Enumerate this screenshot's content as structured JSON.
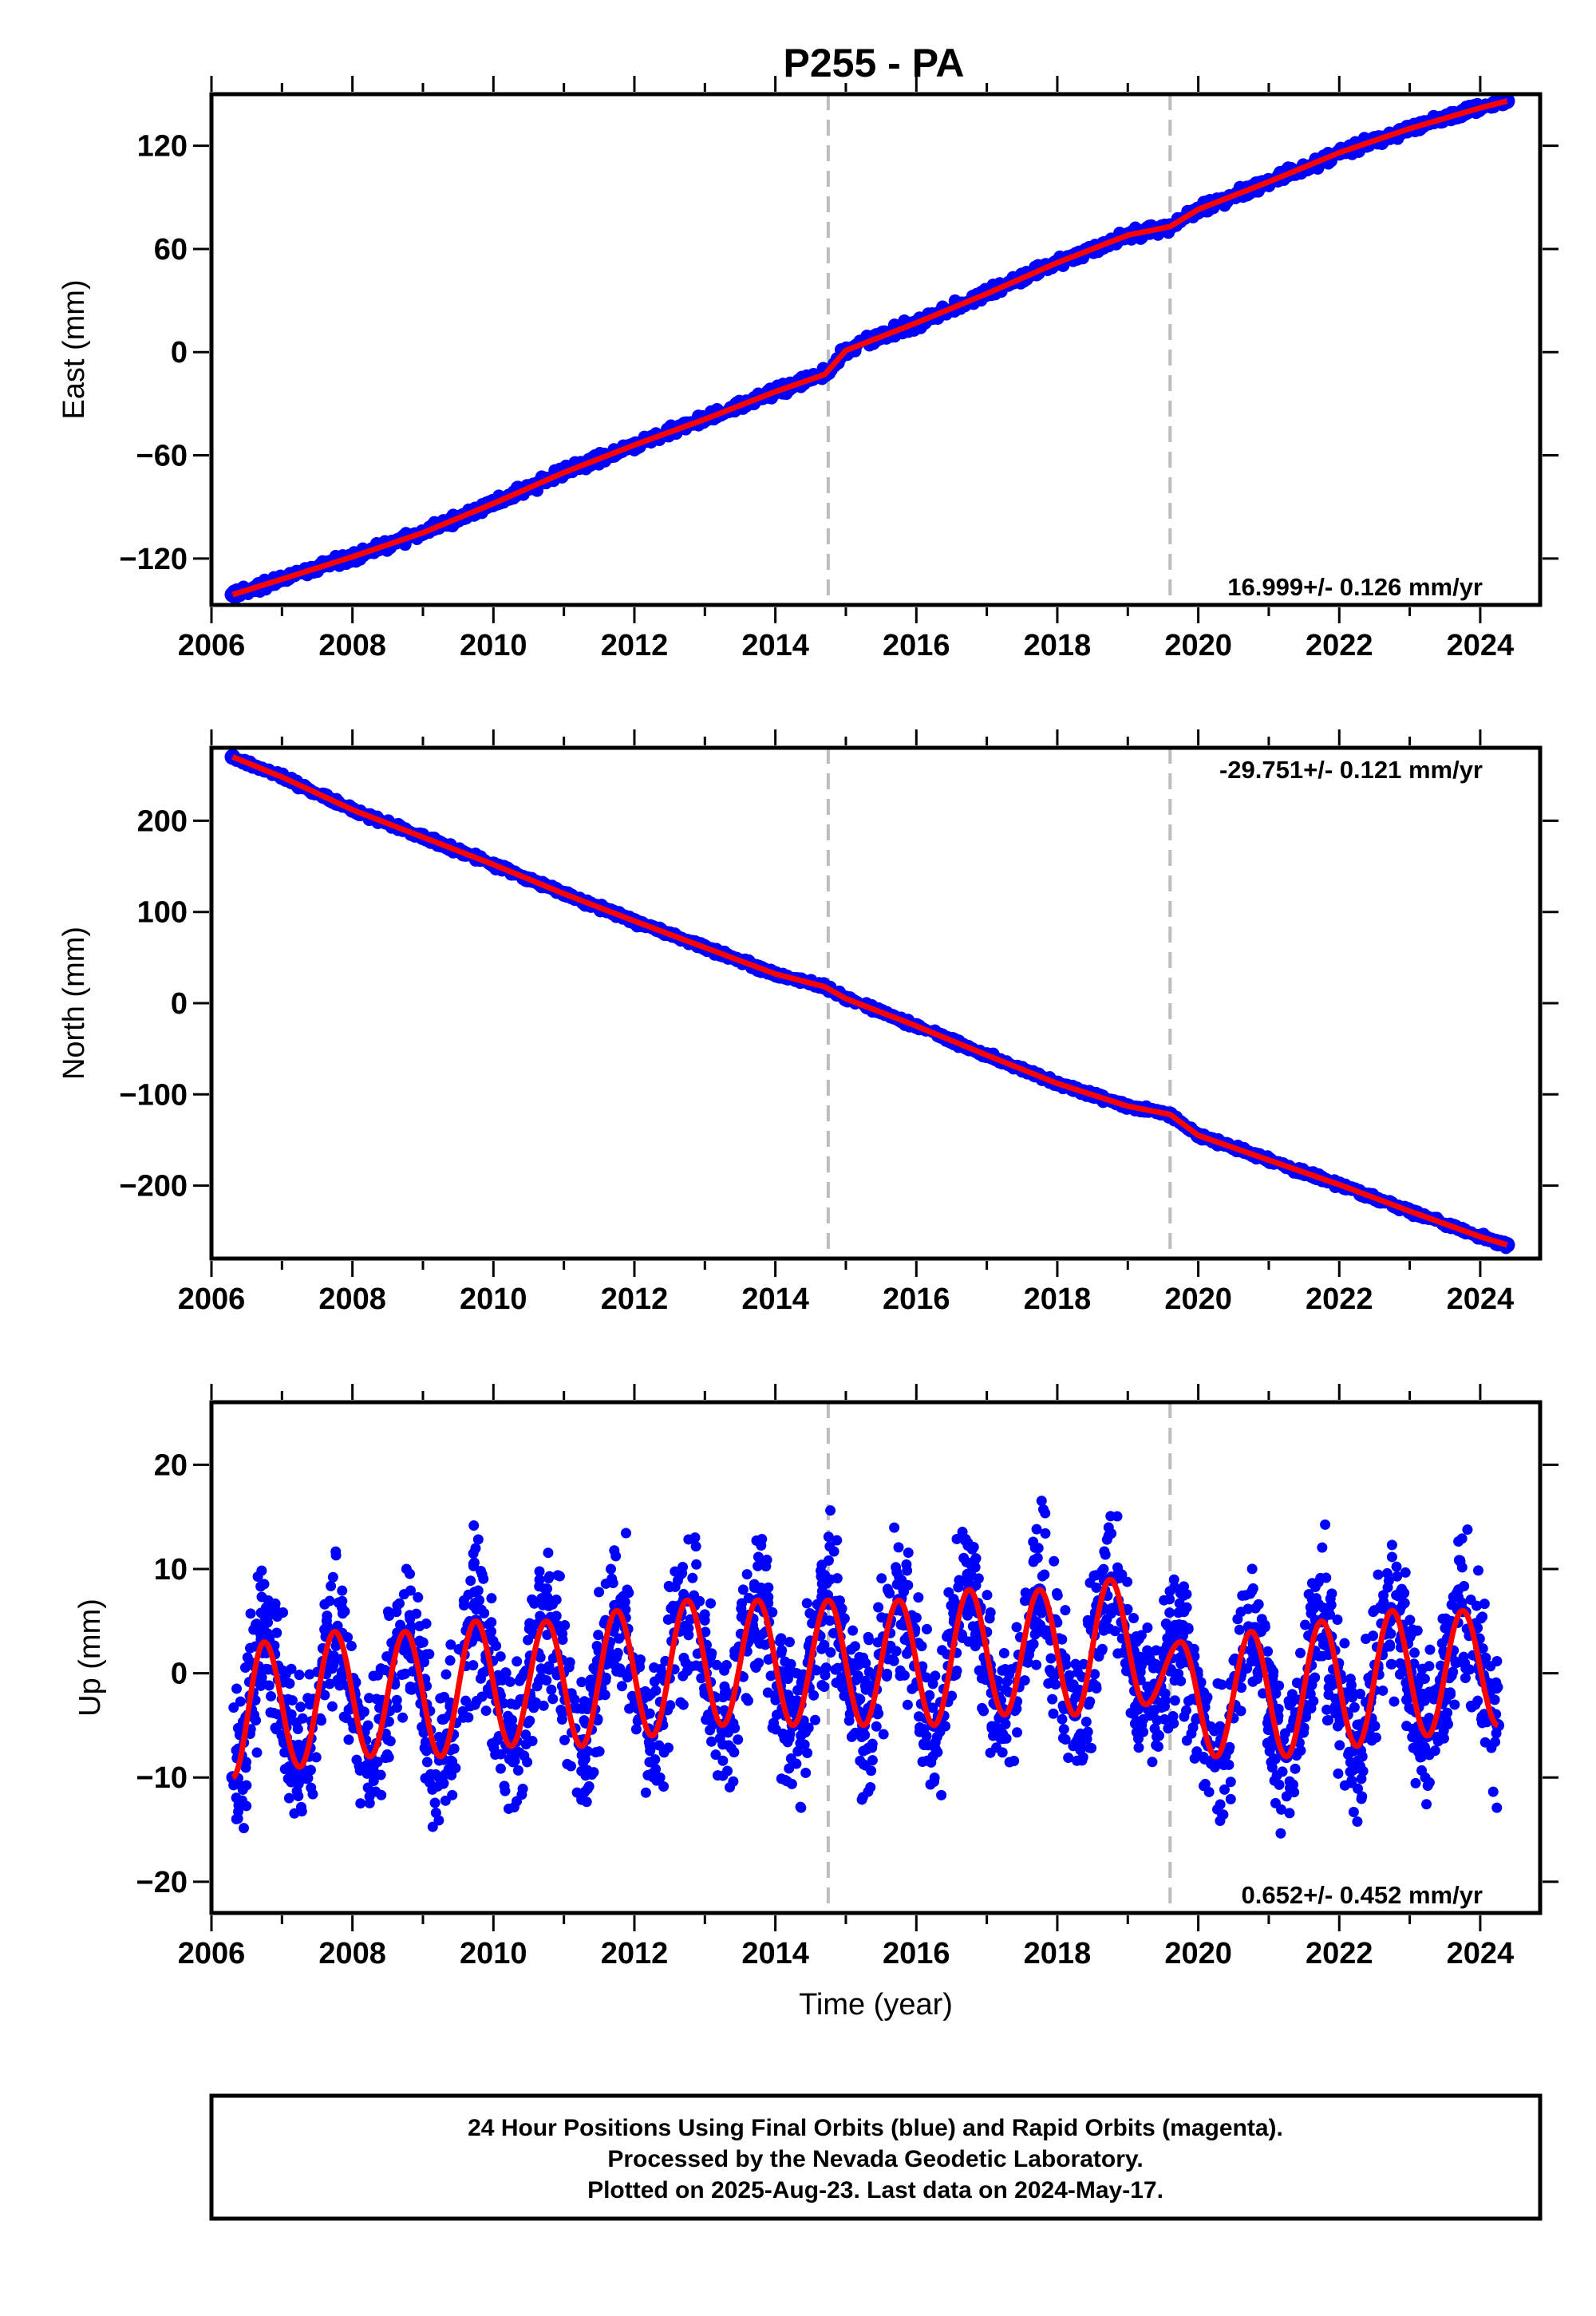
{
  "title": "P255 - PA",
  "x_ticks": [
    "2006",
    "2008",
    "2010",
    "2012",
    "2014",
    "2016",
    "2018",
    "2020",
    "2022",
    "2024"
  ],
  "chart_data": [
    {
      "type": "scatter",
      "panel": "east",
      "ylabel": "East (mm)",
      "xlabel": "",
      "xlim": [
        2006.0,
        2024.85
      ],
      "ylim": [
        -147,
        150
      ],
      "y_ticks": [
        -120,
        -60,
        0,
        60,
        120
      ],
      "rate_label": "16.999+/- 0.126 mm/yr",
      "rate_position": "bottom-right",
      "equipment_change_lines": [
        2014.75,
        2019.6
      ],
      "series": [
        {
          "name": "Final Orbits",
          "color": "#0000ff",
          "x": [
            2006.3,
            2007.0,
            2008.0,
            2009.0,
            2010.0,
            2011.0,
            2012.0,
            2013.0,
            2014.0,
            2014.7,
            2015.0,
            2016.0,
            2017.0,
            2018.0,
            2019.0,
            2019.6,
            2020.0,
            2021.0,
            2022.0,
            2023.0,
            2024.0,
            2024.38
          ],
          "y": [
            -141,
            -132,
            -119,
            -105,
            -88,
            -70,
            -54,
            -39,
            -23,
            -13,
            1,
            17,
            34,
            52,
            68,
            73,
            83,
            99,
            116,
            130,
            142,
            146
          ]
        },
        {
          "name": "Model fit",
          "color": "#ff0000",
          "x": [
            2006.3,
            2007.0,
            2008.0,
            2009.0,
            2010.0,
            2011.0,
            2012.0,
            2013.0,
            2014.0,
            2014.7,
            2015.0,
            2016.0,
            2017.0,
            2018.0,
            2019.0,
            2019.6,
            2020.0,
            2021.0,
            2022.0,
            2023.0,
            2024.0,
            2024.38
          ],
          "y": [
            -141,
            -132,
            -119,
            -105,
            -88,
            -70,
            -54,
            -39,
            -23,
            -13,
            1,
            17,
            34,
            52,
            68,
            73,
            83,
            99,
            116,
            130,
            142,
            146
          ]
        }
      ]
    },
    {
      "type": "scatter",
      "panel": "north",
      "ylabel": "North (mm)",
      "xlabel": "",
      "xlim": [
        2006.0,
        2024.85
      ],
      "ylim": [
        -280,
        280
      ],
      "y_ticks": [
        -200,
        -100,
        0,
        100,
        200
      ],
      "rate_label": "-29.751+/- 0.121 mm/yr",
      "rate_position": "top-right",
      "equipment_change_lines": [
        2014.75,
        2019.6
      ],
      "series": [
        {
          "name": "Final Orbits",
          "color": "#0000ff",
          "x": [
            2006.3,
            2007.0,
            2008.0,
            2009.0,
            2010.0,
            2011.0,
            2012.0,
            2013.0,
            2014.0,
            2014.7,
            2015.0,
            2016.0,
            2017.0,
            2018.0,
            2019.0,
            2019.6,
            2020.0,
            2021.0,
            2022.0,
            2023.0,
            2024.0,
            2024.38
          ],
          "y": [
            270,
            248,
            212,
            182,
            152,
            120,
            90,
            61,
            32,
            18,
            5,
            -25,
            -57,
            -88,
            -113,
            -122,
            -145,
            -172,
            -199,
            -228,
            -256,
            -265
          ]
        },
        {
          "name": "Model fit",
          "color": "#ff0000",
          "x": [
            2006.3,
            2007.0,
            2008.0,
            2009.0,
            2010.0,
            2011.0,
            2012.0,
            2013.0,
            2014.0,
            2014.7,
            2015.0,
            2016.0,
            2017.0,
            2018.0,
            2019.0,
            2019.6,
            2020.0,
            2021.0,
            2022.0,
            2023.0,
            2024.0,
            2024.38
          ],
          "y": [
            270,
            248,
            212,
            182,
            152,
            120,
            90,
            61,
            32,
            18,
            5,
            -25,
            -57,
            -88,
            -113,
            -122,
            -145,
            -172,
            -199,
            -228,
            -256,
            -265
          ]
        }
      ]
    },
    {
      "type": "scatter",
      "panel": "up",
      "ylabel": "Up (mm)",
      "xlabel": "Time (year)",
      "xlim": [
        2006.0,
        2024.85
      ],
      "ylim": [
        -23,
        26
      ],
      "y_ticks": [
        -20,
        -10,
        0,
        10,
        20
      ],
      "rate_label": "0.652+/- 0.452 mm/yr",
      "rate_position": "bottom-right",
      "equipment_change_lines": [
        2014.75,
        2019.6
      ],
      "series": [
        {
          "name": "Final Orbits",
          "color": "#0000ff",
          "x": [
            2006.3,
            2006.75,
            2007.25,
            2007.75,
            2008.25,
            2008.75,
            2009.25,
            2009.75,
            2010.25,
            2010.75,
            2011.25,
            2011.75,
            2012.25,
            2012.75,
            2013.25,
            2013.75,
            2014.25,
            2014.75,
            2015.25,
            2015.75,
            2016.25,
            2016.75,
            2017.25,
            2017.75,
            2018.25,
            2018.75,
            2019.25,
            2019.75,
            2020.25,
            2020.75,
            2021.25,
            2021.75,
            2022.25,
            2022.75,
            2023.25,
            2023.75,
            2024.25
          ],
          "y": [
            -10,
            3,
            -9,
            4,
            -8,
            4,
            -8,
            5,
            -7,
            5,
            -7,
            6,
            -6,
            7,
            -5,
            7,
            -5,
            7,
            -5,
            7,
            -5,
            8,
            -4,
            8,
            -4,
            9,
            -3,
            3,
            -8,
            4,
            -8,
            5,
            -7,
            6,
            -6,
            6,
            -5
          ]
        },
        {
          "name": "Model fit",
          "color": "#ff0000",
          "x": [
            2006.3,
            2006.75,
            2007.25,
            2007.75,
            2008.25,
            2008.75,
            2009.25,
            2009.75,
            2010.25,
            2010.75,
            2011.25,
            2011.75,
            2012.25,
            2012.75,
            2013.25,
            2013.75,
            2014.25,
            2014.75,
            2015.25,
            2015.75,
            2016.25,
            2016.75,
            2017.25,
            2017.75,
            2018.25,
            2018.75,
            2019.25,
            2019.75,
            2020.25,
            2020.75,
            2021.25,
            2021.75,
            2022.25,
            2022.75,
            2023.25,
            2023.75,
            2024.25
          ],
          "y": [
            -10,
            3,
            -9,
            4,
            -8,
            4,
            -8,
            5,
            -7,
            5,
            -7,
            6,
            -6,
            7,
            -5,
            7,
            -5,
            7,
            -5,
            7,
            -5,
            8,
            -4,
            8,
            -4,
            9,
            -3,
            3,
            -8,
            4,
            -8,
            5,
            -7,
            6,
            -6,
            6,
            -5
          ]
        }
      ]
    }
  ],
  "footer": {
    "line1": "24 Hour Positions Using Final Orbits (blue) and Rapid Orbits (magenta).",
    "line2": "Processed by the Nevada Geodetic Laboratory.",
    "line3": "Plotted on 2025-Aug-23. Last data on 2024-May-17."
  }
}
